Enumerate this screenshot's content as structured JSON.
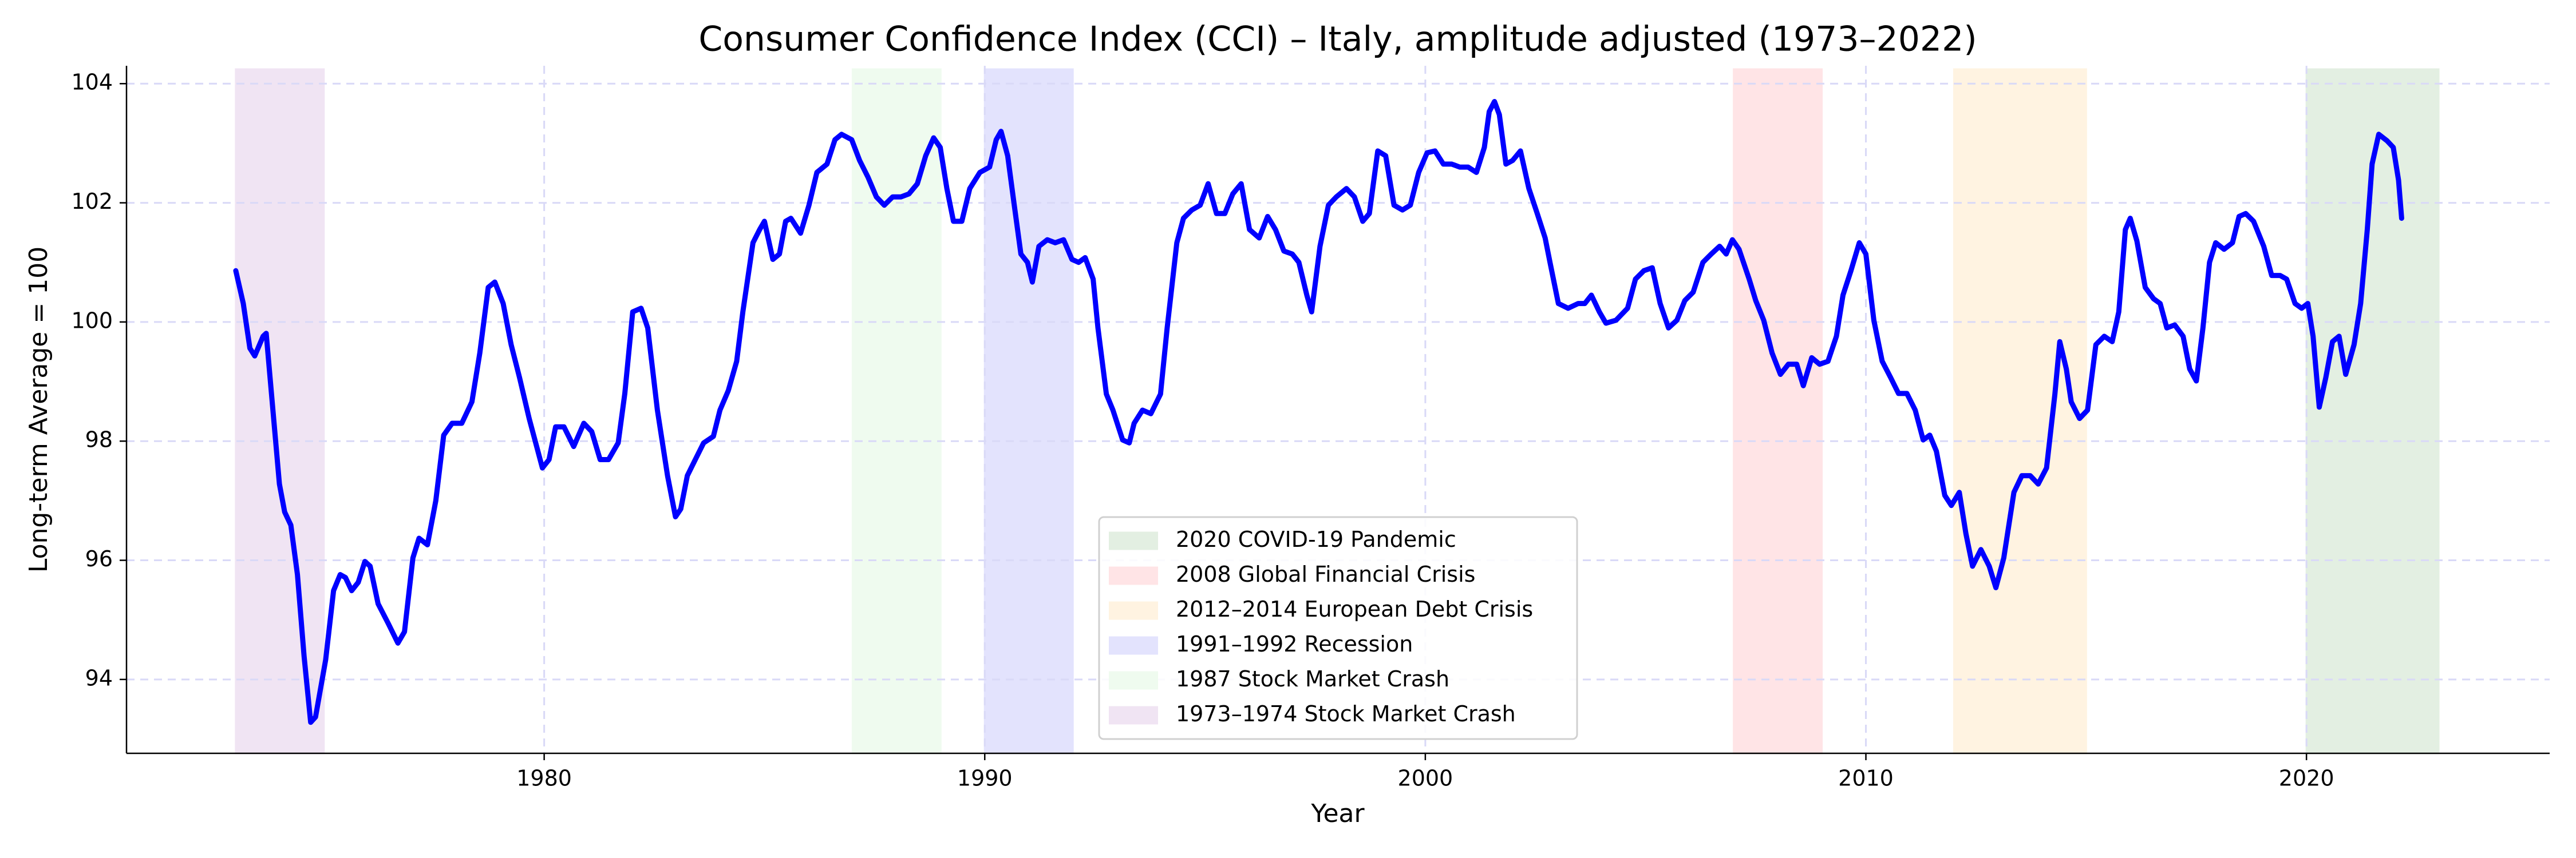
{
  "chart_data": {
    "type": "line",
    "title": "Consumer Confidence Index (CCI) – Italy, amplitude adjusted (1973–2022)",
    "x_label": "Year",
    "y_label": "Long-term Average = 100",
    "x": [
      1973.0,
      1973.17,
      1973.32,
      1973.43,
      1973.62,
      1973.69,
      1973.81,
      1973.99,
      1974.11,
      1974.25,
      1974.4,
      1974.55,
      1974.7,
      1974.81,
      1975.04,
      1975.22,
      1975.37,
      1975.49,
      1975.63,
      1975.78,
      1975.93,
      1976.05,
      1976.23,
      1976.46,
      1976.68,
      1976.83,
      1977.02,
      1977.16,
      1977.35,
      1977.54,
      1977.72,
      1977.91,
      1978.13,
      1978.36,
      1978.54,
      1978.73,
      1978.88,
      1979.07,
      1979.25,
      1979.44,
      1979.66,
      1979.96,
      1980.11,
      1980.26,
      1980.45,
      1980.67,
      1980.9,
      1981.08,
      1981.27,
      1981.46,
      1981.68,
      1981.83,
      1982.01,
      1982.2,
      1982.35,
      1982.57,
      1982.8,
      1982.98,
      1983.1,
      1983.25,
      1983.43,
      1983.62,
      1983.84,
      1983.99,
      1984.18,
      1984.37,
      1984.51,
      1984.74,
      1984.89,
      1985.0,
      1985.19,
      1985.34,
      1985.48,
      1985.6,
      1985.82,
      1986.01,
      1986.19,
      1986.42,
      1986.6,
      1986.75,
      1986.98,
      1987.16,
      1987.35,
      1987.54,
      1987.72,
      1987.91,
      1988.1,
      1988.28,
      1988.47,
      1988.66,
      1988.84,
      1988.99,
      1989.14,
      1989.29,
      1989.48,
      1989.66,
      1989.89,
      1990.11,
      1990.26,
      1990.37,
      1990.52,
      1990.67,
      1990.82,
      1990.97,
      1991.08,
      1991.23,
      1991.42,
      1991.6,
      1991.79,
      1991.98,
      1992.13,
      1992.28,
      1992.46,
      1992.57,
      1992.76,
      1992.91,
      1993.13,
      1993.28,
      1993.39,
      1993.58,
      1993.77,
      1993.99,
      1994.14,
      1994.36,
      1994.51,
      1994.7,
      1994.89,
      1995.07,
      1995.26,
      1995.45,
      1995.63,
      1995.82,
      1996.01,
      1996.23,
      1996.42,
      1996.6,
      1996.79,
      1996.98,
      1997.13,
      1997.31,
      1997.42,
      1997.61,
      1997.8,
      1997.98,
      1998.21,
      1998.39,
      1998.58,
      1998.73,
      1998.92,
      1999.1,
      1999.29,
      1999.48,
      1999.66,
      1999.85,
      2000.04,
      2000.22,
      2000.41,
      2000.6,
      2000.78,
      2000.97,
      2001.16,
      2001.34,
      2001.45,
      2001.57,
      2001.68,
      2001.83,
      2001.98,
      2002.16,
      2002.35,
      2002.54,
      2002.72,
      2002.83,
      2003.02,
      2003.24,
      2003.47,
      2003.62,
      2003.77,
      2003.95,
      2004.1,
      2004.33,
      2004.59,
      2004.77,
      2004.96,
      2005.15,
      2005.33,
      2005.52,
      2005.71,
      2005.89,
      2006.08,
      2006.3,
      2006.49,
      2006.68,
      2006.83,
      2006.97,
      2007.12,
      2007.35,
      2007.5,
      2007.68,
      2007.87,
      2008.06,
      2008.24,
      2008.43,
      2008.58,
      2008.77,
      2008.95,
      2009.14,
      2009.33,
      2009.48,
      2009.66,
      2009.85,
      2010.0,
      2010.18,
      2010.37,
      2010.56,
      2010.74,
      2010.93,
      2011.12,
      2011.3,
      2011.45,
      2011.6,
      2011.79,
      2011.94,
      2012.12,
      2012.27,
      2012.42,
      2012.61,
      2012.8,
      2012.95,
      2013.13,
      2013.36,
      2013.54,
      2013.73,
      2013.91,
      2014.1,
      2014.29,
      2014.4,
      2014.55,
      2014.66,
      2014.85,
      2015.03,
      2015.22,
      2015.41,
      2015.59,
      2015.74,
      2015.89,
      2016.0,
      2016.15,
      2016.34,
      2016.53,
      2016.68,
      2016.83,
      2017.01,
      2017.2,
      2017.35,
      2017.5,
      2017.65,
      2017.8,
      2017.94,
      2018.13,
      2018.32,
      2018.47,
      2018.62,
      2018.8,
      2019.03,
      2019.21,
      2019.4,
      2019.55,
      2019.74,
      2019.89,
      2020.03,
      2020.15,
      2020.29,
      2020.44,
      2020.59,
      2020.74,
      2020.89,
      2021.08,
      2021.23,
      2021.38,
      2021.49,
      2021.64,
      2021.83,
      2021.97,
      2022.09,
      2022.16
    ],
    "series": [
      {
        "color": "#0000ff",
        "values": [
          100.86,
          100.31,
          99.56,
          99.43,
          99.76,
          99.81,
          98.8,
          97.28,
          96.81,
          96.59,
          95.76,
          94.39,
          93.28,
          93.37,
          94.33,
          95.49,
          95.76,
          95.71,
          95.49,
          95.63,
          95.98,
          95.9,
          95.27,
          94.94,
          94.61,
          94.8,
          96.04,
          96.37,
          96.26,
          97.0,
          98.1,
          98.3,
          98.3,
          98.66,
          99.48,
          100.58,
          100.67,
          100.31,
          99.62,
          99.07,
          98.38,
          97.55,
          97.69,
          98.24,
          98.24,
          97.91,
          98.3,
          98.16,
          97.69,
          97.69,
          97.97,
          98.8,
          100.17,
          100.23,
          99.9,
          98.52,
          97.42,
          96.73,
          96.86,
          97.42,
          97.69,
          97.97,
          98.08,
          98.52,
          98.85,
          99.34,
          100.17,
          101.33,
          101.55,
          101.69,
          101.05,
          101.14,
          101.69,
          101.74,
          101.49,
          101.96,
          102.51,
          102.65,
          103.06,
          103.15,
          103.06,
          102.71,
          102.43,
          102.1,
          101.96,
          102.1,
          102.1,
          102.15,
          102.32,
          102.79,
          103.09,
          102.93,
          102.24,
          101.69,
          101.69,
          102.24,
          102.51,
          102.6,
          103.06,
          103.2,
          102.79,
          101.96,
          101.14,
          101.0,
          100.67,
          101.27,
          101.38,
          101.33,
          101.38,
          101.05,
          101.0,
          101.08,
          100.72,
          99.9,
          98.79,
          98.52,
          98.02,
          97.97,
          98.3,
          98.52,
          98.46,
          98.79,
          99.9,
          101.33,
          101.74,
          101.88,
          101.96,
          102.32,
          101.82,
          101.82,
          102.15,
          102.32,
          101.55,
          101.41,
          101.77,
          101.55,
          101.19,
          101.14,
          101.0,
          100.45,
          100.17,
          101.27,
          101.96,
          102.1,
          102.24,
          102.1,
          101.69,
          101.82,
          102.87,
          102.79,
          101.96,
          101.88,
          101.96,
          102.51,
          102.84,
          102.87,
          102.65,
          102.65,
          102.6,
          102.6,
          102.51,
          102.93,
          103.53,
          103.7,
          103.48,
          102.65,
          102.71,
          102.87,
          102.24,
          101.82,
          101.41,
          101.0,
          100.31,
          100.23,
          100.31,
          100.31,
          100.45,
          100.17,
          99.98,
          100.03,
          100.23,
          100.72,
          100.86,
          100.91,
          100.31,
          99.9,
          100.03,
          100.36,
          100.5,
          101.0,
          101.14,
          101.27,
          101.14,
          101.38,
          101.22,
          100.72,
          100.36,
          100.03,
          99.48,
          99.12,
          99.29,
          99.29,
          98.93,
          99.4,
          99.29,
          99.34,
          99.76,
          100.45,
          100.86,
          101.33,
          101.14,
          100.03,
          99.34,
          99.07,
          98.8,
          98.8,
          98.52,
          98.02,
          98.1,
          97.83,
          97.09,
          96.92,
          97.14,
          96.45,
          95.9,
          96.18,
          95.9,
          95.54,
          96.04,
          97.14,
          97.42,
          97.42,
          97.28,
          97.55,
          98.79,
          99.67,
          99.21,
          98.66,
          98.38,
          98.52,
          99.62,
          99.76,
          99.67,
          100.17,
          101.55,
          101.74,
          101.36,
          100.58,
          100.39,
          100.31,
          99.9,
          99.95,
          99.76,
          99.21,
          99.01,
          99.9,
          101.0,
          101.33,
          101.22,
          101.33,
          101.77,
          101.82,
          101.69,
          101.27,
          100.78,
          100.78,
          100.72,
          100.31,
          100.23,
          100.31,
          99.76,
          98.57,
          99.07,
          99.67,
          99.76,
          99.12,
          99.62,
          100.31,
          101.55,
          102.65,
          103.15,
          103.04,
          102.93,
          102.38,
          101.74
        ]
      }
    ],
    "spans": [
      {
        "label": "2020 COVID-19 Pandemic",
        "start": 2020,
        "end": 2023,
        "color": "#e3efe2"
      },
      {
        "label": "2008 Global Financial Crisis",
        "start": 2007,
        "end": 2009,
        "color": "#ffe4e6"
      },
      {
        "label": "2012–2014 European Debt Crisis",
        "start": 2012,
        "end": 2015,
        "color": "#fff3e1"
      },
      {
        "label": "1991–1992 Recession",
        "start": 1990,
        "end": 1992,
        "color": "#e3e3fd"
      },
      {
        "label": "1987 Stock Market Crash",
        "start": 1987,
        "end": 1989,
        "color": "#effbef"
      },
      {
        "label": "1973–1974 Stock Market Crash",
        "start": 1973,
        "end": 1975,
        "color": "#f0e4f3"
      }
    ],
    "xlim": [
      1970.52,
      2025.52
    ],
    "xticks": [
      1980,
      1990,
      2000,
      2010,
      2020
    ],
    "ylim": [
      92.76,
      104.3
    ],
    "yticks": [
      94,
      96,
      98,
      100,
      102,
      104
    ],
    "grid": true,
    "legend": "lower center"
  }
}
